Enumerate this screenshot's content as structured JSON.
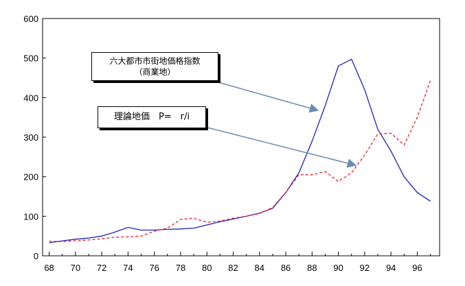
{
  "chart_data": {
    "type": "line",
    "title": "",
    "xlabel": "",
    "ylabel": "",
    "x": [
      68,
      69,
      70,
      71,
      72,
      73,
      74,
      75,
      76,
      77,
      78,
      79,
      80,
      81,
      82,
      83,
      84,
      85,
      86,
      87,
      88,
      89,
      90,
      91,
      92,
      93,
      94,
      95,
      96,
      97
    ],
    "xticks": [
      "68",
      "70",
      "72",
      "74",
      "76",
      "78",
      "80",
      "82",
      "84",
      "86",
      "88",
      "90",
      "92",
      "94",
      "96"
    ],
    "yticks": [
      "0",
      "100",
      "200",
      "300",
      "400",
      "500",
      "600"
    ],
    "xlim": [
      67.5,
      97.7
    ],
    "ylim": [
      0,
      600
    ],
    "series": [
      {
        "name": "六大都市市街地価格指数（商業地）",
        "color": "#1f1fbf",
        "style": "solid",
        "values": [
          33,
          38,
          42,
          45,
          50,
          60,
          72,
          65,
          65,
          67,
          68,
          70,
          78,
          86,
          93,
          100,
          108,
          120,
          160,
          210,
          290,
          380,
          480,
          497,
          420,
          320,
          265,
          200,
          160,
          138
        ]
      },
      {
        "name": "理論地価 P= r/i",
        "color": "#e8202a",
        "style": "dashed",
        "values": [
          37,
          36,
          38,
          40,
          43,
          47,
          48,
          50,
          62,
          70,
          92,
          95,
          85,
          88,
          95,
          100,
          107,
          122,
          160,
          205,
          205,
          213,
          188,
          210,
          255,
          308,
          310,
          280,
          350,
          443
        ]
      }
    ],
    "annotations": [
      {
        "line1": "六大都市市街地価格指数",
        "line2": "（商業地）"
      },
      {
        "line1": "理論地価　P=　r/i"
      }
    ],
    "arrow_color": "#6a8caf",
    "grid": false
  }
}
